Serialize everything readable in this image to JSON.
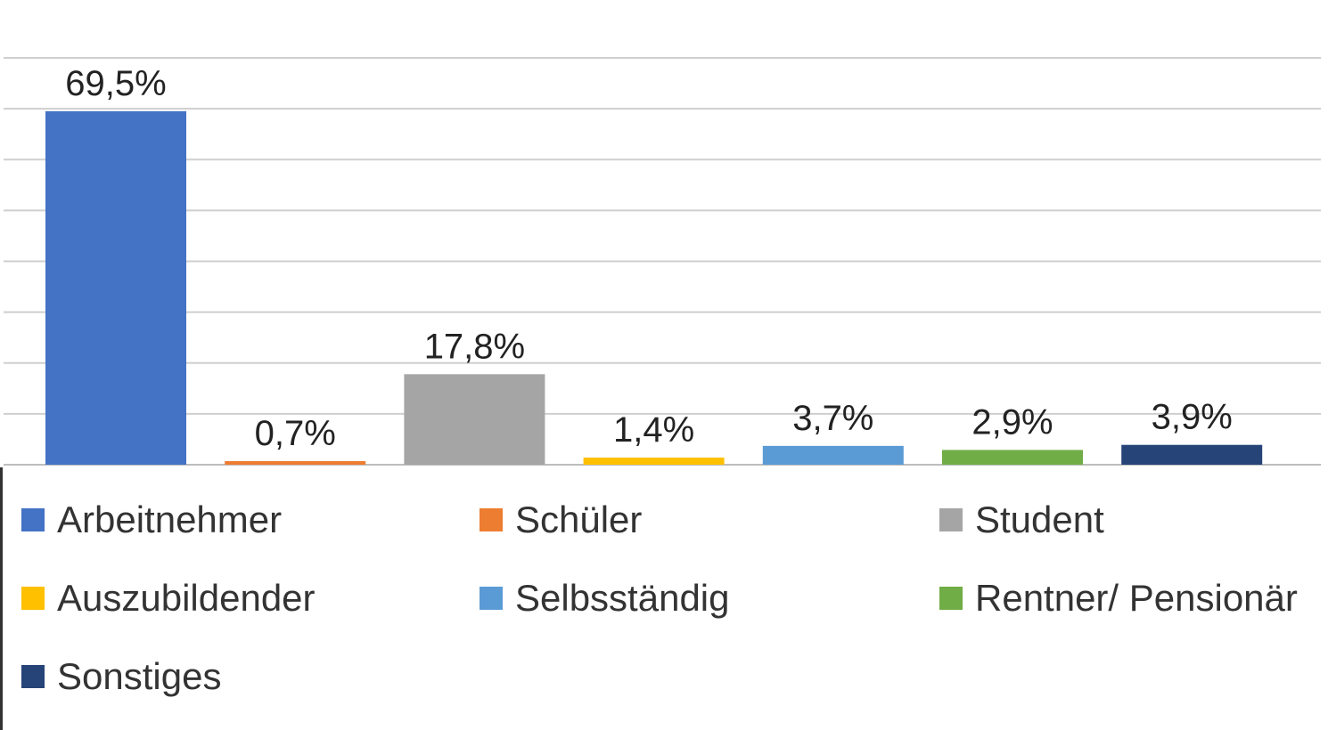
{
  "chart_data": {
    "type": "bar",
    "categories": [
      "Arbeitnehmer",
      "Schüler",
      "Student",
      "Auszubildender",
      "Selbsständig",
      "Rentner/ Pensionär",
      "Sonstiges"
    ],
    "values": [
      69.5,
      0.7,
      17.8,
      1.4,
      3.7,
      2.9,
      3.9
    ],
    "value_labels": [
      "69,5%",
      "0,7%",
      "17,8%",
      "1,4%",
      "3,7%",
      "2,9%",
      "3,9%"
    ],
    "colors": [
      "#4472c4",
      "#ed7d31",
      "#a5a5a5",
      "#ffc000",
      "#5b9bd5",
      "#70ad47",
      "#264478"
    ],
    "title": "",
    "xlabel": "",
    "ylabel": "",
    "ylim": [
      0,
      80
    ],
    "grid": true,
    "legend_position": "bottom"
  }
}
